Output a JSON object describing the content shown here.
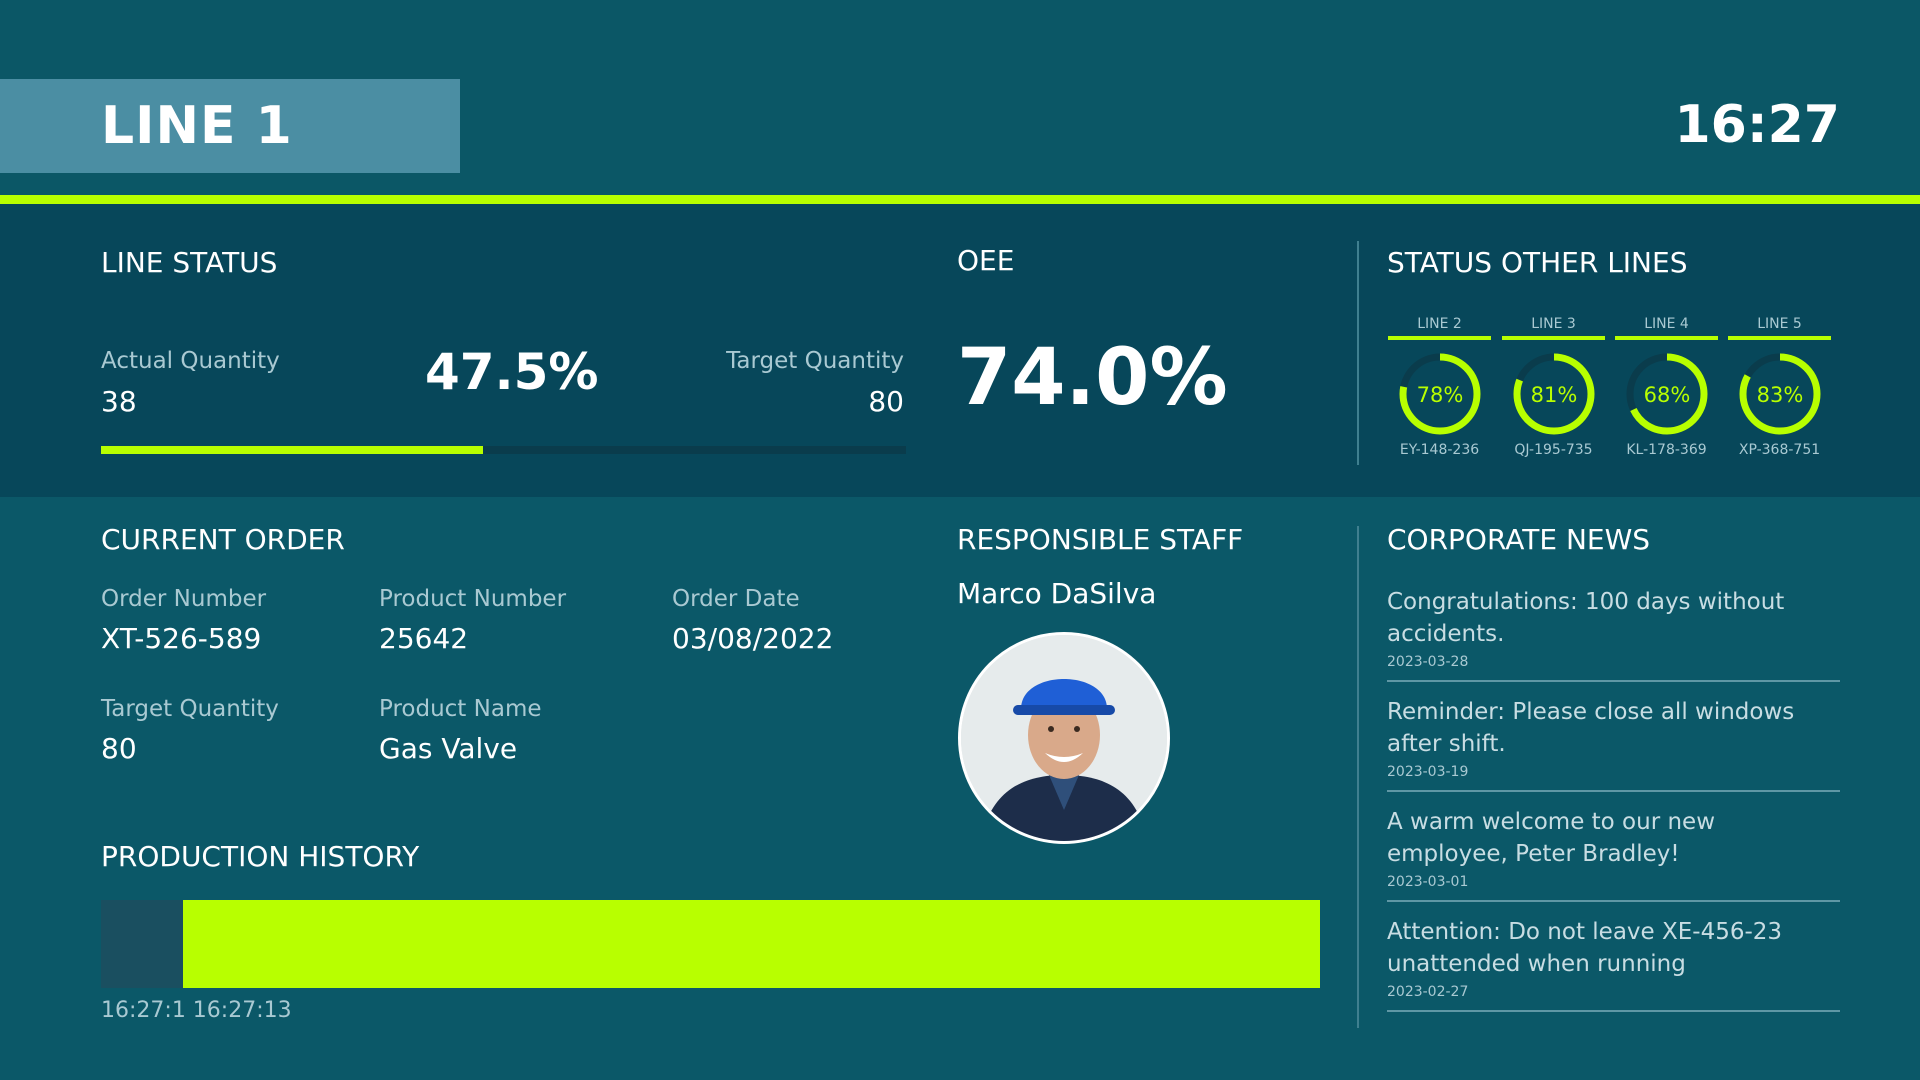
{
  "header": {
    "line_title": "LINE 1",
    "clock": "16:27"
  },
  "line_status": {
    "title": "LINE STATUS",
    "actual_label": "Actual Quantity",
    "actual_value": "38",
    "percent": "47.5%",
    "target_label": "Target Quantity",
    "target_value": "80",
    "progress_fraction": 0.475
  },
  "oee": {
    "title": "OEE",
    "value": "74.0%"
  },
  "other_lines": {
    "title": "STATUS OTHER LINES",
    "lines": [
      {
        "name": "LINE 2",
        "percent_label": "78%",
        "percent": 78,
        "code": "EY-148-236"
      },
      {
        "name": "LINE 3",
        "percent_label": "81%",
        "percent": 81,
        "code": "QJ-195-735"
      },
      {
        "name": "LINE 4",
        "percent_label": "68%",
        "percent": 68,
        "code": "KL-178-369"
      },
      {
        "name": "LINE 5",
        "percent_label": "83%",
        "percent": 83,
        "code": "XP-368-751"
      }
    ]
  },
  "current_order": {
    "title": "CURRENT ORDER",
    "order_number_label": "Order Number",
    "order_number": "XT-526-589",
    "product_number_label": "Product Number",
    "product_number": "25642",
    "order_date_label": "Order Date",
    "order_date": "03/08/2022",
    "target_quantity_label": "Target Quantity",
    "target_quantity": "80",
    "product_name_label": "Product Name",
    "product_name": "Gas Valve"
  },
  "staff": {
    "title": "RESPONSIBLE STAFF",
    "name": "Marco DaSilva"
  },
  "history": {
    "title": "PRODUCTION HISTORY",
    "ticks": "16:27:1 16:27:13",
    "idle_fraction": 0.067
  },
  "news": {
    "title": "CORPORATE NEWS",
    "items": [
      {
        "text": "Congratulations: 100 days without accidents.",
        "date": "2023-03-28"
      },
      {
        "text": "Reminder: Please close all windows after shift.",
        "date": "2023-03-19"
      },
      {
        "text": "A warm welcome to our new employee, Peter Bradley!",
        "date": "2023-03-01"
      },
      {
        "text": "Attention: Do not leave XE-456-23 unattended when running",
        "date": "2023-02-27"
      }
    ]
  },
  "colors": {
    "accent": "#b8ff00",
    "background": "#0b5766",
    "band": "#07475a"
  }
}
